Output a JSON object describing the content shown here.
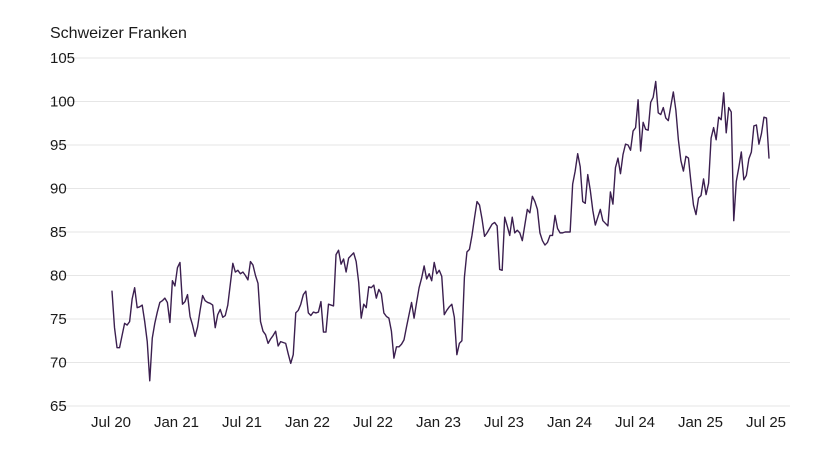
{
  "chart_data": {
    "type": "line",
    "unit_label": "Schweizer Franken",
    "ylim": [
      65,
      105
    ],
    "y_ticks": [
      65,
      70,
      75,
      80,
      85,
      90,
      95,
      100,
      105
    ],
    "x_ticks": [
      "Jul 20",
      "Jan 21",
      "Jul 21",
      "Jan 22",
      "Jul 22",
      "Jan 23",
      "Jul 23",
      "Jan 24",
      "Jul 24",
      "Jan 25",
      "Jul 25"
    ],
    "grid": "horizontal",
    "colors": {
      "line": "#3b1f4f",
      "grid": "#e6e6e6",
      "text": "#1a1a1a"
    },
    "series": [
      {
        "x": [
          "2020-07-01",
          "2020-07-08",
          "2020-07-15",
          "2020-07-22",
          "2020-07-29",
          "2020-08-05",
          "2020-08-12",
          "2020-08-19",
          "2020-08-26",
          "2020-09-02",
          "2020-09-09",
          "2020-09-16",
          "2020-09-23",
          "2020-09-30",
          "2020-10-07",
          "2020-10-14",
          "2020-10-21",
          "2020-10-28",
          "2020-11-04",
          "2020-11-11",
          "2020-11-18",
          "2020-11-25",
          "2020-12-02",
          "2020-12-09",
          "2020-12-16",
          "2020-12-23",
          "2020-12-30",
          "2021-01-06",
          "2021-01-13",
          "2021-01-20",
          "2021-01-27",
          "2021-02-03",
          "2021-02-10",
          "2021-02-17",
          "2021-02-24",
          "2021-03-03",
          "2021-03-10",
          "2021-03-17",
          "2021-03-24",
          "2021-03-31",
          "2021-04-07",
          "2021-04-14",
          "2021-04-21",
          "2021-04-28",
          "2021-05-05",
          "2021-05-12",
          "2021-05-19",
          "2021-05-26",
          "2021-06-02",
          "2021-06-09",
          "2021-06-16",
          "2021-06-23",
          "2021-06-30",
          "2021-07-07",
          "2021-07-14",
          "2021-07-21",
          "2021-07-28",
          "2021-08-04",
          "2021-08-11",
          "2021-08-18",
          "2021-08-25",
          "2021-09-01",
          "2021-09-08",
          "2021-09-15",
          "2021-09-22",
          "2021-09-29",
          "2021-10-06",
          "2021-10-13",
          "2021-10-20",
          "2021-10-27",
          "2021-11-03",
          "2021-11-10",
          "2021-11-17",
          "2021-11-24",
          "2021-12-01",
          "2021-12-08",
          "2021-12-15",
          "2021-12-22",
          "2021-12-29",
          "2022-01-05",
          "2022-01-12",
          "2022-01-19",
          "2022-01-26",
          "2022-02-02",
          "2022-02-09",
          "2022-02-16",
          "2022-02-23",
          "2022-03-02",
          "2022-03-09",
          "2022-03-16",
          "2022-03-23",
          "2022-03-30",
          "2022-04-06",
          "2022-04-13",
          "2022-04-20",
          "2022-04-27",
          "2022-05-04",
          "2022-05-11",
          "2022-05-18",
          "2022-05-25",
          "2022-06-01",
          "2022-06-08",
          "2022-06-15",
          "2022-06-22",
          "2022-06-29",
          "2022-07-06",
          "2022-07-13",
          "2022-07-20",
          "2022-07-27",
          "2022-08-03",
          "2022-08-10",
          "2022-08-17",
          "2022-08-24",
          "2022-08-31",
          "2022-09-07",
          "2022-09-14",
          "2022-09-21",
          "2022-09-28",
          "2022-10-05",
          "2022-10-12",
          "2022-10-19",
          "2022-10-26",
          "2022-11-02",
          "2022-11-09",
          "2022-11-16",
          "2022-11-23",
          "2022-11-30",
          "2022-12-07",
          "2022-12-14",
          "2022-12-21",
          "2022-12-28",
          "2023-01-04",
          "2023-01-11",
          "2023-01-18",
          "2023-01-25",
          "2023-02-01",
          "2023-02-08",
          "2023-02-15",
          "2023-02-22",
          "2023-03-01",
          "2023-03-08",
          "2023-03-15",
          "2023-03-22",
          "2023-03-29",
          "2023-04-05",
          "2023-04-12",
          "2023-04-19",
          "2023-04-26",
          "2023-05-03",
          "2023-05-10",
          "2023-05-17",
          "2023-05-24",
          "2023-05-31",
          "2023-06-07",
          "2023-06-14",
          "2023-06-21",
          "2023-06-28",
          "2023-07-05",
          "2023-07-12",
          "2023-07-19",
          "2023-07-26",
          "2023-08-02",
          "2023-08-09",
          "2023-08-16",
          "2023-08-23",
          "2023-08-30",
          "2023-09-06",
          "2023-09-13",
          "2023-09-20",
          "2023-09-27",
          "2023-10-04",
          "2023-10-11",
          "2023-10-18",
          "2023-10-25",
          "2023-11-01",
          "2023-11-08",
          "2023-11-15",
          "2023-11-22",
          "2023-11-29",
          "2023-12-06",
          "2023-12-13",
          "2023-12-20",
          "2023-12-27",
          "2024-01-03",
          "2024-01-10",
          "2024-01-17",
          "2024-01-24",
          "2024-01-31",
          "2024-02-07",
          "2024-02-14",
          "2024-02-21",
          "2024-02-28",
          "2024-03-06",
          "2024-03-13",
          "2024-03-20",
          "2024-03-27",
          "2024-04-03",
          "2024-04-10",
          "2024-04-17",
          "2024-04-24",
          "2024-05-01",
          "2024-05-08",
          "2024-05-15",
          "2024-05-22",
          "2024-05-29",
          "2024-06-05",
          "2024-06-12",
          "2024-06-19",
          "2024-06-26",
          "2024-07-03",
          "2024-07-10",
          "2024-07-17",
          "2024-07-24",
          "2024-07-31",
          "2024-08-07",
          "2024-08-14",
          "2024-08-21",
          "2024-08-28",
          "2024-09-04",
          "2024-09-11",
          "2024-09-18",
          "2024-09-25",
          "2024-10-02",
          "2024-10-09",
          "2024-10-16",
          "2024-10-23",
          "2024-10-30",
          "2024-11-06",
          "2024-11-13",
          "2024-11-20",
          "2024-11-27",
          "2024-12-04",
          "2024-12-11",
          "2024-12-18",
          "2024-12-25",
          "2025-01-01",
          "2025-01-08",
          "2025-01-15",
          "2025-01-22",
          "2025-01-29",
          "2025-02-05",
          "2025-02-12",
          "2025-02-19",
          "2025-02-26",
          "2025-03-05",
          "2025-03-12",
          "2025-03-19",
          "2025-03-26",
          "2025-04-02",
          "2025-04-09",
          "2025-04-16",
          "2025-04-23",
          "2025-04-30",
          "2025-05-07",
          "2025-05-14",
          "2025-05-21",
          "2025-05-28",
          "2025-06-04",
          "2025-06-11",
          "2025-06-18",
          "2025-06-25",
          "2025-07-02"
        ],
        "values": [
          78.2,
          74.0,
          71.7,
          71.7,
          73.1,
          74.5,
          74.3,
          74.7,
          77.3,
          78.6,
          76.3,
          76.4,
          76.6,
          74.7,
          72.4,
          67.9,
          72.8,
          74.5,
          75.8,
          76.9,
          77.1,
          77.4,
          76.9,
          74.6,
          79.4,
          78.8,
          80.9,
          81.5,
          76.7,
          77.0,
          77.8,
          75.3,
          74.3,
          73.0,
          74.1,
          76.0,
          77.7,
          77.1,
          76.9,
          76.8,
          76.6,
          74.0,
          75.5,
          76.1,
          75.2,
          75.4,
          76.6,
          79.0,
          81.4,
          80.4,
          80.6,
          80.2,
          80.4,
          80.0,
          79.5,
          81.6,
          81.2,
          80.0,
          79.1,
          74.7,
          73.6,
          73.2,
          72.2,
          72.7,
          73.1,
          73.6,
          71.9,
          72.4,
          72.3,
          72.2,
          71.0,
          69.9,
          70.9,
          75.7,
          76.0,
          76.7,
          77.8,
          78.2,
          75.7,
          75.4,
          75.8,
          75.7,
          75.8,
          77.0,
          73.5,
          73.5,
          76.7,
          76.6,
          76.5,
          82.4,
          82.9,
          81.3,
          81.9,
          80.4,
          82.0,
          82.3,
          82.6,
          81.6,
          79.2,
          75.1,
          76.7,
          76.3,
          78.7,
          78.6,
          78.9,
          77.4,
          78.4,
          77.9,
          75.7,
          75.3,
          75.1,
          73.6,
          70.5,
          71.8,
          71.8,
          72.1,
          72.6,
          74.1,
          75.5,
          76.9,
          75.1,
          76.9,
          78.6,
          79.7,
          81.1,
          79.6,
          80.2,
          79.4,
          81.5,
          80.2,
          80.6,
          79.9,
          75.5,
          76.0,
          76.4,
          76.7,
          75.2,
          70.9,
          72.2,
          72.5,
          79.8,
          82.7,
          83.0,
          84.6,
          86.6,
          88.5,
          88.1,
          86.5,
          84.5,
          84.9,
          85.4,
          85.9,
          86.1,
          85.7,
          80.7,
          80.6,
          86.7,
          85.7,
          84.6,
          86.7,
          84.9,
          85.2,
          84.9,
          84.0,
          85.8,
          87.6,
          87.2,
          89.1,
          88.5,
          87.6,
          84.9,
          84.0,
          83.5,
          83.8,
          84.6,
          84.6,
          86.9,
          85.4,
          84.9,
          84.9,
          85.0,
          85.0,
          85.0,
          90.5,
          92.0,
          94.0,
          92.5,
          88.5,
          88.3,
          91.6,
          89.8,
          87.5,
          85.8,
          86.7,
          87.6,
          86.3,
          86.0,
          85.7,
          89.6,
          88.2,
          92.4,
          93.5,
          91.7,
          93.9,
          95.1,
          95.0,
          94.4,
          96.6,
          97.0,
          100.2,
          94.3,
          97.6,
          96.8,
          96.7,
          99.9,
          100.5,
          102.3,
          98.7,
          98.5,
          99.3,
          98.1,
          97.8,
          99.5,
          101.1,
          99.0,
          95.6,
          93.2,
          92.0,
          93.7,
          93.5,
          90.7,
          88.1,
          87.0,
          88.9,
          89.2,
          91.1,
          89.3,
          90.6,
          95.8,
          97.0,
          95.6,
          98.2,
          97.9,
          101.0,
          96.4,
          99.3,
          98.8,
          86.3,
          90.8,
          92.4,
          94.2,
          91.0,
          91.5,
          93.4,
          94.2,
          97.2,
          97.3,
          95.1,
          96.3,
          98.2,
          98.1,
          93.5
        ]
      }
    ]
  }
}
